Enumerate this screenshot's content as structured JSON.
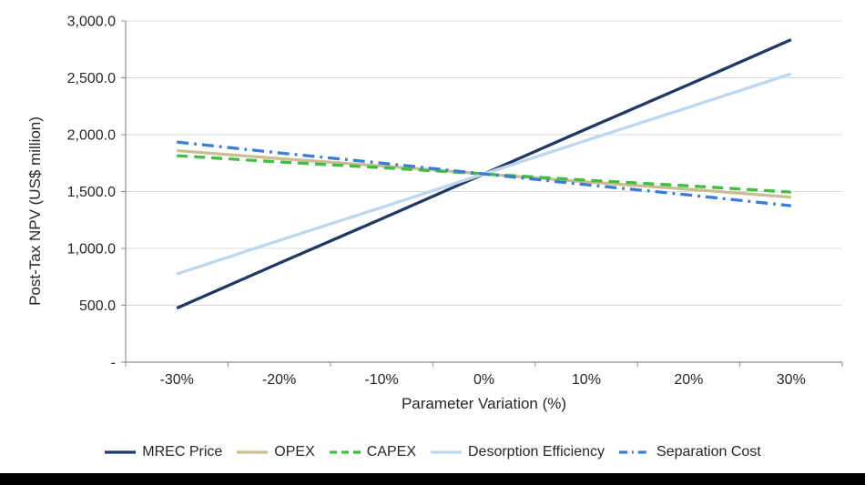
{
  "chart_data": {
    "type": "line",
    "title": "",
    "xlabel": "Parameter Variation (%)",
    "ylabel": "Post-Tax NPV (US$ million)",
    "x_categories": [
      "-30%",
      "-20%",
      "-10%",
      "0%",
      "10%",
      "20%",
      "30%"
    ],
    "x_values": [
      -30,
      -20,
      -10,
      0,
      10,
      20,
      30
    ],
    "ylim": [
      0,
      3000
    ],
    "y_ticks": [
      {
        "value": 0,
        "label": "-"
      },
      {
        "value": 500,
        "label": "500.0"
      },
      {
        "value": 1000,
        "label": "1,000.0"
      },
      {
        "value": 1500,
        "label": "1,500.0"
      },
      {
        "value": 2000,
        "label": "2,000.0"
      },
      {
        "value": 2500,
        "label": "2,500.0"
      },
      {
        "value": 3000,
        "label": "3,000.0"
      }
    ],
    "grid": true,
    "legend_position": "bottom",
    "gridline_color": "#D9D9D9",
    "axis_color": "#8C8C8C",
    "text_color": "#262626",
    "series": [
      {
        "name": "MREC Price",
        "color": "#1F3864",
        "style": "solid",
        "values": [
          475,
          870,
          1260,
          1655,
          2050,
          2440,
          2835
        ]
      },
      {
        "name": "OPEX",
        "color": "#C9BE91",
        "style": "solid",
        "values": [
          1860,
          1790,
          1725,
          1655,
          1585,
          1520,
          1450
        ]
      },
      {
        "name": "CAPEX",
        "color": "#41BE41",
        "style": "dashed",
        "values": [
          1815,
          1760,
          1710,
          1655,
          1600,
          1550,
          1495
        ]
      },
      {
        "name": "Desorption Efficiency",
        "color": "#BDD7EE",
        "style": "solid",
        "values": [
          775,
          1070,
          1360,
          1655,
          1950,
          2240,
          2535
        ]
      },
      {
        "name": "Separation Cost",
        "color": "#3B7CD9",
        "style": "dashdot",
        "values": [
          1935,
          1840,
          1750,
          1655,
          1560,
          1470,
          1375
        ]
      }
    ]
  }
}
